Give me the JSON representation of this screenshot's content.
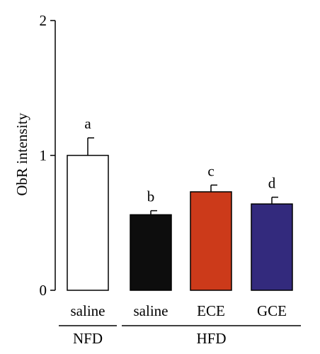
{
  "chart_data": {
    "type": "bar",
    "ylabel": "ObR intensity",
    "ylim": [
      0,
      2
    ],
    "yticks": [
      0,
      1,
      2
    ],
    "grid": false,
    "categories": [
      "saline",
      "saline",
      "ECE",
      "GCE"
    ],
    "groups": [
      {
        "label": "NFD",
        "categories": [
          0
        ]
      },
      {
        "label": "HFD",
        "categories": [
          1,
          2,
          3
        ]
      }
    ],
    "values": [
      1.0,
      0.56,
      0.73,
      0.64
    ],
    "errors": [
      0.13,
      0.03,
      0.05,
      0.05
    ],
    "significance": [
      "a",
      "b",
      "c",
      "d"
    ],
    "colors": [
      "#ffffff",
      "#0d0d0d",
      "#cc3a1a",
      "#332a7d"
    ]
  }
}
